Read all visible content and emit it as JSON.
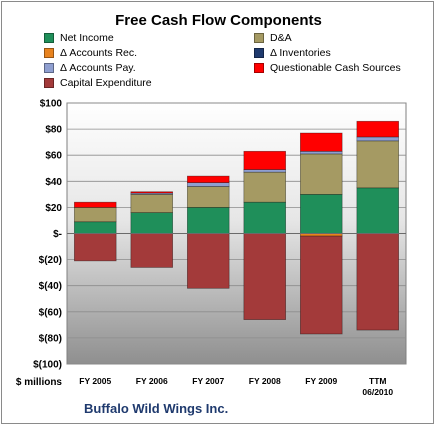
{
  "chart_data": {
    "type": "bar",
    "title": "Free Cash Flow Components",
    "unit_label": "$ millions",
    "company": "Buffalo Wild Wings Inc.",
    "categories": [
      "FY 2005",
      "FY 2006",
      "FY 2007",
      "FY 2008",
      "FY 2009",
      "TTM 06/2010"
    ],
    "ylim": [
      -100,
      100
    ],
    "yticks": [
      100,
      80,
      60,
      40,
      20,
      0,
      -20,
      -40,
      -60,
      -80,
      -100
    ],
    "ytick_labels": [
      "$100",
      "$80",
      "$60",
      "$40",
      "$20",
      "$-",
      "$(20)",
      "$(40)",
      "$(60)",
      "$(80)",
      "$(100)"
    ],
    "grid": true,
    "legend_position": "top",
    "stacked": true,
    "series": [
      {
        "name": "Net Income",
        "color": "#1f8f5a",
        "values": [
          9,
          16,
          20,
          24,
          30,
          35
        ]
      },
      {
        "name": "D&A",
        "color": "#a59a63",
        "values": [
          11,
          14,
          16,
          23,
          31,
          36
        ]
      },
      {
        "name": "Δ Accounts Rec.",
        "color": "#e8831f",
        "values": [
          0,
          0,
          0,
          0,
          -2,
          0
        ]
      },
      {
        "name": "Δ Inventories",
        "color": "#1f3a6e",
        "values": [
          0,
          0,
          0,
          0,
          0,
          0
        ]
      },
      {
        "name": "Δ Accounts Pay.",
        "color": "#8f9fd0",
        "values": [
          0,
          1,
          3,
          2,
          2,
          3
        ]
      },
      {
        "name": "Questionable Cash Sources",
        "color": "#ff0000",
        "values": [
          4,
          1,
          5,
          14,
          14,
          12
        ]
      },
      {
        "name": "Capital Expenditure",
        "color": "#a33a3a",
        "values": [
          -21,
          -26,
          -42,
          -66,
          -75,
          -74
        ]
      }
    ]
  }
}
